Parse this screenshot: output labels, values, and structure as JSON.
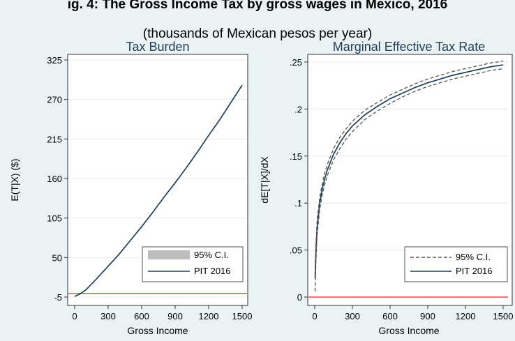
{
  "figure": {
    "title_partial": "ig. 4: The Gross Income Tax by gross wages in Mexico, 2016",
    "subtitle": "(thousands of Mexican pesos per year)"
  },
  "colors": {
    "background": "#eaf2f3",
    "plot_bg": "#ffffff",
    "line": "#1f3e5c",
    "zero_line": "#e84a4a",
    "ci_fill": "#bdbdbd",
    "ci_dash": "#555555",
    "title_color": "#1f3e5c"
  },
  "chart_data": [
    {
      "type": "line",
      "title": "Tax Burden",
      "xlabel": "Gross Income",
      "ylabel": "E(T|X)   ($)",
      "xlim": [
        0,
        1500
      ],
      "ylim": [
        -5,
        325
      ],
      "x_ticks": [
        0,
        300,
        600,
        900,
        1200,
        1500
      ],
      "x_tick_labels": [
        "0",
        "300",
        "600",
        "900",
        "1200",
        "1500"
      ],
      "y_ticks": [
        -5,
        50,
        105,
        160,
        215,
        270,
        325
      ],
      "y_tick_labels": [
        "-5",
        "50",
        "105",
        "160",
        "215",
        "270",
        "325"
      ],
      "reference_line_y": 0,
      "legend_position": "bottom-right",
      "legend": [
        {
          "label": "95% C.I.",
          "style": "fill"
        },
        {
          "label": "PIT 2016",
          "style": "solid"
        }
      ],
      "series": [
        {
          "name": "PIT 2016",
          "x": [
            0,
            50,
            100,
            200,
            300,
            400,
            500,
            600,
            700,
            800,
            900,
            1000,
            1100,
            1200,
            1300,
            1400,
            1500
          ],
          "y": [
            -4,
            -0.5,
            5,
            21,
            38,
            55,
            74,
            93,
            113,
            134,
            154,
            175,
            197,
            220,
            242,
            266,
            290
          ]
        }
      ]
    },
    {
      "type": "line",
      "title": "Marginal Effective Tax Rate",
      "xlabel": "Gross Income",
      "ylabel": "dE[T|X]/dX",
      "xlim": [
        0,
        1500
      ],
      "ylim": [
        0,
        0.25
      ],
      "x_ticks": [
        0,
        300,
        600,
        900,
        1200,
        1500
      ],
      "x_tick_labels": [
        "0",
        "300",
        "600",
        "900",
        "1200",
        "1500"
      ],
      "y_ticks": [
        0,
        0.05,
        0.1,
        0.15,
        0.2,
        0.25
      ],
      "y_tick_labels": [
        "0",
        ".05",
        ".1",
        ".15",
        ".2",
        ".25"
      ],
      "reference_line_y": 0,
      "legend_position": "bottom-right",
      "legend": [
        {
          "label": "95% C.I.",
          "style": "dashed"
        },
        {
          "label": "PIT 2016",
          "style": "solid"
        }
      ],
      "series": [
        {
          "name": "PIT 2016",
          "x": [
            3,
            10,
            20,
            40,
            60,
            80,
            100,
            150,
            200,
            250,
            300,
            400,
            500,
            600,
            700,
            800,
            900,
            1000,
            1100,
            1200,
            1300,
            1400,
            1500
          ],
          "y": [
            0.02,
            0.05,
            0.075,
            0.1,
            0.115,
            0.126,
            0.135,
            0.152,
            0.164,
            0.174,
            0.182,
            0.194,
            0.203,
            0.211,
            0.217,
            0.223,
            0.228,
            0.232,
            0.236,
            0.239,
            0.242,
            0.245,
            0.247
          ]
        },
        {
          "name": "95% C.I. upper",
          "x": [
            3,
            10,
            20,
            40,
            60,
            80,
            100,
            150,
            200,
            250,
            300,
            400,
            500,
            600,
            700,
            800,
            900,
            1000,
            1100,
            1200,
            1300,
            1400,
            1500
          ],
          "y": [
            0.03,
            0.058,
            0.083,
            0.106,
            0.121,
            0.132,
            0.141,
            0.158,
            0.17,
            0.179,
            0.187,
            0.199,
            0.207,
            0.215,
            0.221,
            0.227,
            0.232,
            0.236,
            0.24,
            0.243,
            0.246,
            0.249,
            0.251
          ]
        },
        {
          "name": "95% C.I. lower",
          "x": [
            3,
            10,
            20,
            40,
            60,
            80,
            100,
            150,
            200,
            250,
            300,
            400,
            500,
            600,
            700,
            800,
            900,
            1000,
            1100,
            1200,
            1300,
            1400,
            1500
          ],
          "y": [
            0.006,
            0.04,
            0.067,
            0.094,
            0.109,
            0.12,
            0.129,
            0.146,
            0.158,
            0.168,
            0.176,
            0.189,
            0.198,
            0.206,
            0.213,
            0.219,
            0.224,
            0.228,
            0.232,
            0.235,
            0.238,
            0.241,
            0.243
          ]
        }
      ]
    }
  ]
}
